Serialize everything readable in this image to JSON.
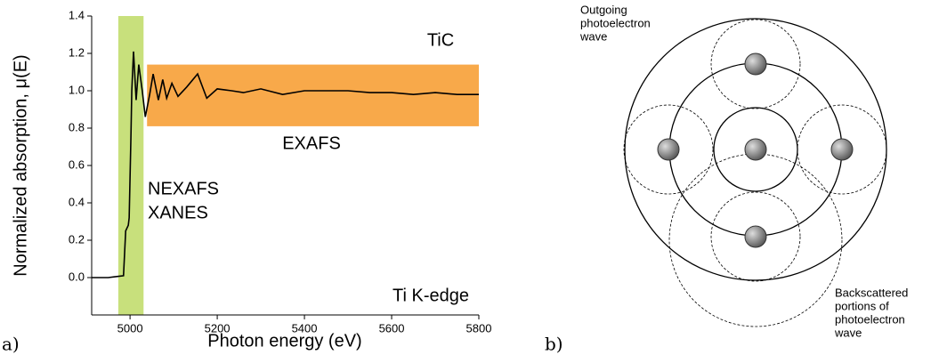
{
  "chart_data": {
    "type": "line",
    "xlabel": "Photon energy (eV)",
    "ylabel": "Normalized absorption, μ(E)",
    "panel_label": "a)",
    "xlim": [
      4912,
      5800
    ],
    "ylim": [
      -0.2,
      1.4
    ],
    "xticks": [
      5000,
      5200,
      5400,
      5600,
      5800
    ],
    "yticks": [
      {
        "value": 0,
        "label": "0.0"
      },
      {
        "value": 0.2,
        "label": "0.2"
      },
      {
        "value": 0.4,
        "label": "0.4"
      },
      {
        "value": 0.6,
        "label": "0.6"
      },
      {
        "value": 0.8,
        "label": "0.8"
      },
      {
        "value": 1,
        "label": "1.0"
      },
      {
        "value": 1.2,
        "label": "1.2"
      },
      {
        "value": 1.4,
        "label": "1.4"
      }
    ],
    "bands": [
      {
        "color": "#c8e07c",
        "xlim": [
          4973,
          5031
        ]
      },
      {
        "color": "#f8a94a",
        "xlim": [
          5039,
          5800
        ],
        "ylim": [
          0.81,
          1.14
        ]
      }
    ],
    "series": [
      {
        "color": "#000000",
        "x": [
          4912,
          4950,
          4985,
          4990,
          4996,
          4998,
          5002,
          5004,
          5008,
          5014,
          5020,
          5028,
          5035,
          5045,
          5053,
          5065,
          5075,
          5084,
          5096,
          5110,
          5130,
          5155,
          5176,
          5200,
          5233,
          5260,
          5300,
          5350,
          5400,
          5450,
          5500,
          5550,
          5600,
          5650,
          5700,
          5750,
          5800
        ],
        "values": [
          0.0,
          0.0,
          0.01,
          0.25,
          0.28,
          0.32,
          0.75,
          1.0,
          1.21,
          0.95,
          1.14,
          1.0,
          0.86,
          0.98,
          1.09,
          0.95,
          1.06,
          0.96,
          1.04,
          0.97,
          1.02,
          1.09,
          0.96,
          1.01,
          1.0,
          0.99,
          1.01,
          0.98,
          1.0,
          1.0,
          1.0,
          0.99,
          0.99,
          0.98,
          0.99,
          0.98,
          0.98
        ]
      }
    ],
    "annotations": [
      {
        "text": "TiC",
        "color": "#000000"
      },
      {
        "text": "EXAFS",
        "color": "#f28a30"
      },
      {
        "text": "NEXAFS",
        "color": "#b5d448"
      },
      {
        "text": "XANES",
        "color": "#b5d448"
      },
      {
        "text": "Ti K-edge",
        "color": "#000000"
      }
    ]
  },
  "diagram": {
    "panel_label": "b)",
    "labels": [
      {
        "lines": [
          "Outgoing",
          "photoelectron",
          "wave"
        ]
      },
      {
        "lines": [
          "Backscattered",
          "portions of",
          "photoelectron",
          "wave"
        ]
      }
    ]
  }
}
